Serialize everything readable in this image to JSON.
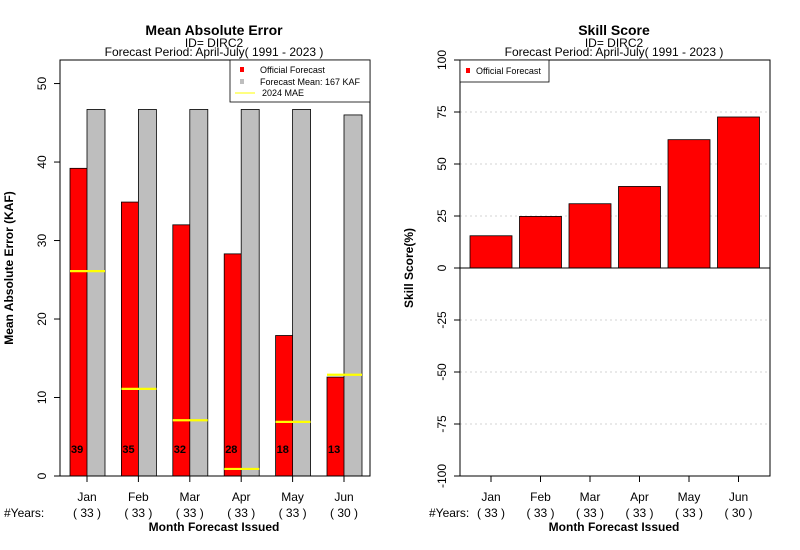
{
  "chart_data": [
    {
      "type": "bar",
      "title": "Mean Absolute Error",
      "subtitle1": "ID= DIRC2",
      "subtitle2": "Forecast Period: April-July( 1991 - 2023 )",
      "xlabel": "Month Forecast Issued",
      "ylabel": "Mean Absolute Error (KAF)",
      "ylim": [
        0,
        53
      ],
      "yticks": [
        "0",
        "10",
        "20",
        "30",
        "40",
        "50"
      ],
      "categories": [
        "Jan",
        "Feb",
        "Mar",
        "Apr",
        "May",
        "Jun"
      ],
      "years_prefix": "#Years:",
      "years": [
        "( 33 )",
        "( 33 )",
        "( 33 )",
        "( 33 )",
        "( 33 )",
        "( 30 )"
      ],
      "series": [
        {
          "name": "Official Forecast",
          "color": "#ff0000",
          "values": [
            39.2,
            34.9,
            32.0,
            28.3,
            17.9,
            12.6
          ]
        },
        {
          "name": "Forecast Mean: 167 KAF",
          "color": "#bebebe",
          "values": [
            46.7,
            46.7,
            46.7,
            46.7,
            46.7,
            46.0
          ]
        },
        {
          "name": "2024  MAE",
          "color": "#ffff00",
          "values": [
            26.1,
            11.1,
            7.1,
            0.9,
            6.9,
            12.9
          ]
        }
      ],
      "bar_labels": [
        "39",
        "35",
        "32",
        "28",
        "18",
        "13"
      ],
      "legend_position": "top-right"
    },
    {
      "type": "bar",
      "title": "Skill Score",
      "subtitle1": "ID= DIRC2",
      "subtitle2": "Forecast Period: April-July( 1991 - 2023 )",
      "xlabel": "Month Forecast Issued",
      "ylabel": "Skill Score(%)",
      "ylim": [
        -100,
        100
      ],
      "yticks": [
        "-100",
        "-75",
        "-50",
        "-25",
        "0",
        "25",
        "50",
        "75",
        "100"
      ],
      "categories": [
        "Jan",
        "Feb",
        "Mar",
        "Apr",
        "May",
        "Jun"
      ],
      "years_prefix": "#Years:",
      "years": [
        "( 33 )",
        "( 33 )",
        "( 33 )",
        "( 33 )",
        "( 33 )",
        "( 30 )"
      ],
      "series": [
        {
          "name": "Official Forecast",
          "color": "#ff0000",
          "values": [
            15.5,
            24.8,
            30.9,
            39.2,
            61.7,
            72.6
          ]
        }
      ],
      "grid": true,
      "legend_position": "top-left"
    }
  ]
}
